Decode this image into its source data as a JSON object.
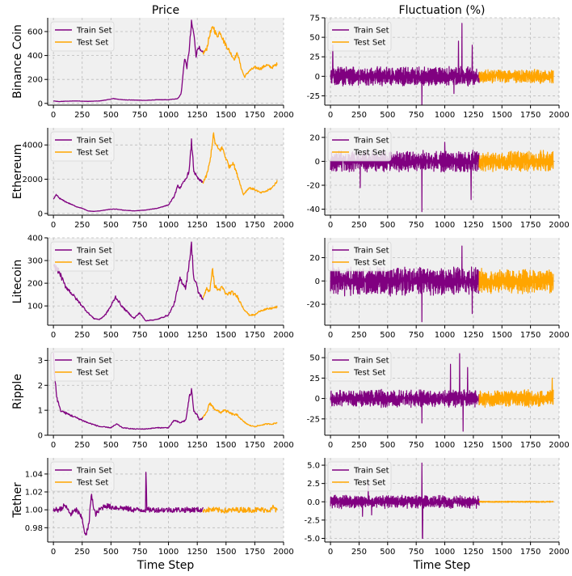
{
  "figure": {
    "column_titles": [
      "Price",
      "Fluctuation (%)"
    ],
    "row_labels": [
      "Binance Coin",
      "Ethereum",
      "Litecoin",
      "Ripple",
      "Tether"
    ],
    "xlabel": "Time Step",
    "legend": [
      "Train Set",
      "Test Set"
    ]
  },
  "colors": {
    "train": "#800080",
    "test": "#FFA500",
    "panel_bg": "#F0F0F0",
    "grid": "#BBBBBB"
  },
  "chart_data": [
    {
      "type": "line",
      "row": 0,
      "col": 0,
      "title": "Price",
      "ylabel": "Binance Coin",
      "xlabel": "",
      "xlim": [
        -50,
        2000
      ],
      "ylim": [
        -15,
        715
      ],
      "xticks": [
        0,
        250,
        500,
        750,
        1000,
        1250,
        1500,
        1750,
        2000
      ],
      "yticks": [
        0,
        200,
        400,
        600
      ],
      "split": 1300,
      "noise": 0.04,
      "series": [
        {
          "name": "Train Set",
          "x": [
            0,
            50,
            100,
            200,
            300,
            400,
            480,
            520,
            560,
            600,
            700,
            800,
            900,
            1000,
            1080,
            1110,
            1140,
            1160,
            1180,
            1200,
            1220,
            1240,
            1260,
            1280,
            1300
          ],
          "y": [
            20,
            15,
            18,
            20,
            17,
            20,
            32,
            40,
            35,
            30,
            28,
            25,
            30,
            30,
            40,
            80,
            380,
            300,
            450,
            670,
            580,
            400,
            480,
            430,
            420
          ]
        },
        {
          "name": "Test Set",
          "x": [
            1300,
            1330,
            1360,
            1390,
            1420,
            1450,
            1480,
            1510,
            1540,
            1570,
            1600,
            1630,
            1660,
            1700,
            1750,
            1800,
            1850,
            1900,
            1945
          ],
          "y": [
            420,
            450,
            580,
            640,
            560,
            600,
            520,
            470,
            420,
            370,
            420,
            300,
            220,
            270,
            300,
            290,
            320,
            300,
            330
          ]
        }
      ]
    },
    {
      "type": "line",
      "row": 0,
      "col": 1,
      "title": "Fluctuation (%)",
      "ylabel": "",
      "xlabel": "",
      "xlim": [
        -50,
        2000
      ],
      "ylim": [
        -37,
        75
      ],
      "xticks": [
        0,
        250,
        500,
        750,
        1000,
        1250,
        1500,
        1750,
        2000
      ],
      "yticks": [
        -25,
        0,
        25,
        50,
        75
      ],
      "split": 1300,
      "amp_train": 7,
      "amp_test": 5,
      "spikes": [
        {
          "x": 800,
          "y": -38
        },
        {
          "x": 1150,
          "y": 68
        },
        {
          "x": 1120,
          "y": 45
        },
        {
          "x": 20,
          "y": 40
        },
        {
          "x": 1080,
          "y": -22
        },
        {
          "x": 1240,
          "y": 40
        }
      ]
    },
    {
      "type": "line",
      "row": 1,
      "col": 0,
      "title": "",
      "ylabel": "Ethereum",
      "xlabel": "",
      "xlim": [
        -50,
        2000
      ],
      "ylim": [
        -100,
        5000
      ],
      "xticks": [
        0,
        250,
        500,
        750,
        1000,
        1250,
        1500,
        1750,
        2000
      ],
      "yticks": [
        0,
        2000,
        4000
      ],
      "split": 1300,
      "noise": 0.04,
      "series": [
        {
          "name": "Train Set",
          "x": [
            0,
            25,
            50,
            100,
            150,
            200,
            250,
            300,
            350,
            400,
            450,
            500,
            550,
            600,
            700,
            800,
            900,
            1000,
            1050,
            1080,
            1100,
            1150,
            1180,
            1200,
            1220,
            1240,
            1260,
            1300
          ],
          "y": [
            800,
            1100,
            900,
            700,
            550,
            400,
            300,
            150,
            120,
            150,
            200,
            250,
            250,
            200,
            150,
            200,
            300,
            500,
            1000,
            1600,
            1500,
            2000,
            2500,
            4200,
            2500,
            2200,
            2000,
            1800
          ]
        },
        {
          "name": "Test Set",
          "x": [
            1300,
            1330,
            1360,
            1390,
            1410,
            1440,
            1470,
            1500,
            1530,
            1560,
            1590,
            1620,
            1650,
            1700,
            1750,
            1800,
            1850,
            1900,
            1945
          ],
          "y": [
            1800,
            2200,
            3000,
            4600,
            4000,
            3700,
            3800,
            3200,
            2700,
            3000,
            2400,
            1800,
            1100,
            1500,
            1400,
            1200,
            1300,
            1500,
            1900
          ]
        }
      ]
    },
    {
      "type": "line",
      "row": 1,
      "col": 1,
      "title": "",
      "ylabel": "",
      "xlabel": "",
      "xlim": [
        -50,
        2000
      ],
      "ylim": [
        -45,
        28
      ],
      "xticks": [
        0,
        250,
        500,
        750,
        1000,
        1250,
        1500,
        1750,
        2000
      ],
      "yticks": [
        -40,
        -20,
        0,
        20
      ],
      "split": 1300,
      "amp_train": 5,
      "amp_test": 5,
      "spikes": [
        {
          "x": 800,
          "y": -42
        },
        {
          "x": 1230,
          "y": -32
        },
        {
          "x": 1000,
          "y": 16
        },
        {
          "x": 260,
          "y": -22
        }
      ]
    },
    {
      "type": "line",
      "row": 2,
      "col": 0,
      "title": "",
      "ylabel": "Litecoin",
      "xlabel": "",
      "xlim": [
        -50,
        2000
      ],
      "ylim": [
        15,
        400
      ],
      "xticks": [
        0,
        250,
        500,
        750,
        1000,
        1250,
        1500,
        1750,
        2000
      ],
      "yticks": [
        100,
        200,
        300,
        400
      ],
      "split": 1300,
      "noise": 0.05,
      "series": [
        {
          "name": "Train Set",
          "x": [
            0,
            50,
            100,
            200,
            300,
            350,
            400,
            450,
            500,
            540,
            600,
            700,
            750,
            800,
            900,
            1000,
            1050,
            1100,
            1150,
            1200,
            1220,
            1240,
            1260,
            1300
          ],
          "y": [
            280,
            250,
            190,
            130,
            70,
            45,
            40,
            60,
            100,
            140,
            95,
            45,
            70,
            35,
            40,
            60,
            110,
            220,
            180,
            370,
            220,
            200,
            160,
            130
          ]
        },
        {
          "name": "Test Set",
          "x": [
            1300,
            1330,
            1360,
            1380,
            1400,
            1430,
            1470,
            1500,
            1550,
            1600,
            1650,
            1700,
            1750,
            1800,
            1850,
            1900,
            1945
          ],
          "y": [
            130,
            180,
            160,
            270,
            190,
            170,
            180,
            150,
            160,
            140,
            90,
            60,
            60,
            80,
            85,
            90,
            95
          ]
        }
      ]
    },
    {
      "type": "line",
      "row": 2,
      "col": 1,
      "title": "",
      "ylabel": "",
      "xlabel": "",
      "xlim": [
        -50,
        2000
      ],
      "ylim": [
        -38,
        37
      ],
      "xticks": [
        0,
        250,
        500,
        750,
        1000,
        1250,
        1500,
        1750,
        2000
      ],
      "yticks": [
        -20,
        0,
        20
      ],
      "split": 1300,
      "amp_train": 7,
      "amp_test": 6,
      "spikes": [
        {
          "x": 800,
          "y": -35
        },
        {
          "x": 1150,
          "y": 30
        },
        {
          "x": 20,
          "y": 30
        },
        {
          "x": 1240,
          "y": -28
        }
      ]
    },
    {
      "type": "line",
      "row": 3,
      "col": 0,
      "title": "",
      "ylabel": "Ripple",
      "xlabel": "",
      "xlim": [
        -50,
        2000
      ],
      "ylim": [
        0,
        3.5
      ],
      "xticks": [
        0,
        250,
        500,
        750,
        1000,
        1250,
        1500,
        1750,
        2000
      ],
      "yticks": [
        0,
        1,
        2,
        3
      ],
      "split": 1300,
      "noise": 0.05,
      "series": [
        {
          "name": "Train Set",
          "x": [
            0,
            10,
            30,
            60,
            100,
            200,
            300,
            400,
            500,
            550,
            600,
            700,
            800,
            900,
            1000,
            1050,
            1100,
            1150,
            1180,
            1200,
            1220,
            1250,
            1270,
            1300
          ],
          "y": [
            3.4,
            2.4,
            1.5,
            1.0,
            0.9,
            0.7,
            0.5,
            0.35,
            0.3,
            0.45,
            0.3,
            0.25,
            0.25,
            0.3,
            0.3,
            0.6,
            0.5,
            0.6,
            1.5,
            1.8,
            1.0,
            0.8,
            0.6,
            0.7
          ]
        },
        {
          "name": "Test Set",
          "x": [
            1300,
            1330,
            1360,
            1390,
            1420,
            1450,
            1480,
            1510,
            1550,
            1600,
            1650,
            1700,
            1750,
            1800,
            1850,
            1900,
            1945
          ],
          "y": [
            0.7,
            0.9,
            1.3,
            1.1,
            1.0,
            0.9,
            1.0,
            0.95,
            0.85,
            0.8,
            0.55,
            0.4,
            0.35,
            0.4,
            0.45,
            0.45,
            0.5
          ]
        }
      ]
    },
    {
      "type": "line",
      "row": 3,
      "col": 1,
      "title": "",
      "ylabel": "",
      "xlabel": "",
      "xlim": [
        -50,
        2000
      ],
      "ylim": [
        -45,
        62
      ],
      "xticks": [
        0,
        250,
        500,
        750,
        1000,
        1250,
        1500,
        1750,
        2000
      ],
      "yticks": [
        -25,
        0,
        25,
        50
      ],
      "split": 1300,
      "amp_train": 6,
      "amp_test": 6,
      "spikes": [
        {
          "x": 1130,
          "y": 55
        },
        {
          "x": 1050,
          "y": 42
        },
        {
          "x": 1160,
          "y": -40
        },
        {
          "x": 800,
          "y": -30
        },
        {
          "x": 1940,
          "y": 25
        },
        {
          "x": 1200,
          "y": 38
        }
      ]
    },
    {
      "type": "line",
      "row": 4,
      "col": 0,
      "title": "",
      "ylabel": "Tether",
      "xlabel": "Time Step",
      "xlim": [
        -50,
        2000
      ],
      "ylim": [
        0.964,
        1.058
      ],
      "xticks": [
        0,
        250,
        500,
        750,
        1000,
        1250,
        1500,
        1750,
        2000
      ],
      "yticks": [
        0.98,
        1.0,
        1.02,
        1.04
      ],
      "split": 1300,
      "noise": 0.003,
      "series": [
        {
          "name": "Train Set",
          "x": [
            0,
            50,
            100,
            150,
            200,
            250,
            280,
            310,
            330,
            350,
            370,
            400,
            450,
            500,
            600,
            700,
            800,
            805,
            810,
            900,
            1000,
            1100,
            1200,
            1300
          ],
          "y": [
            1.0,
            1.0,
            1.005,
            0.995,
            1.0,
            0.99,
            0.97,
            0.985,
            1.02,
            1.0,
            0.995,
            1.0,
            1.005,
            1.003,
            1.002,
            1.0,
            1.0,
            1.055,
            1.0,
            1.0,
            1.0,
            1.0,
            1.0,
            1.0
          ]
        },
        {
          "name": "Test Set",
          "x": [
            1300,
            1400,
            1500,
            1600,
            1700,
            1800,
            1900,
            1910,
            1920,
            1945
          ],
          "y": [
            1.0,
            1.0,
            0.999,
            1.0,
            1.0,
            1.0,
            1.0,
            1.006,
            1.0,
            1.0
          ]
        }
      ]
    },
    {
      "type": "line",
      "row": 4,
      "col": 1,
      "title": "",
      "ylabel": "",
      "xlabel": "Time Step",
      "xlim": [
        -50,
        2000
      ],
      "ylim": [
        -5.5,
        6.0
      ],
      "xticks": [
        0,
        250,
        500,
        750,
        1000,
        1250,
        1500,
        1750,
        2000
      ],
      "yticks": [
        -5.0,
        -2.5,
        0.0,
        2.5,
        5.0
      ],
      "split": 1300,
      "amp_train": 0.5,
      "amp_test": 0.05,
      "spikes": [
        {
          "x": 800,
          "y": 5.3
        },
        {
          "x": 805,
          "y": -5.0
        },
        {
          "x": 330,
          "y": 2.8
        },
        {
          "x": 280,
          "y": -2.0
        },
        {
          "x": 360,
          "y": -1.8
        }
      ]
    }
  ]
}
